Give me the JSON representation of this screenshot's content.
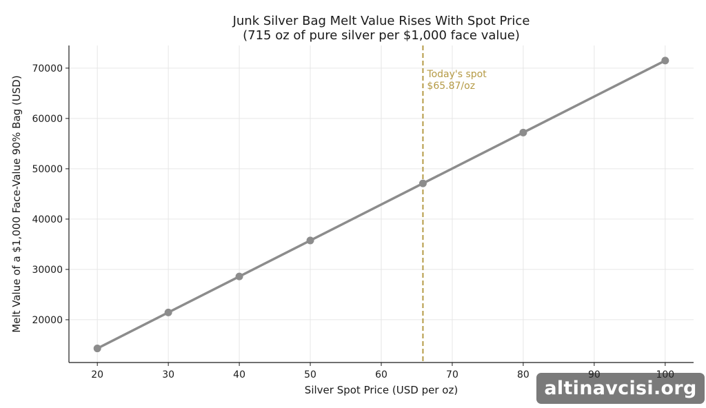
{
  "chart_data": {
    "type": "line",
    "title": "Junk Silver Bag Melt Value Rises With Spot Price",
    "subtitle": "(715 oz of pure silver per $1,000 face value)",
    "xlabel": "Silver Spot Price (USD per oz)",
    "ylabel": "Melt Value of a $1,000 Face-Value 90% Bag (USD)",
    "xlim": [
      16,
      104
    ],
    "ylim": [
      11500,
      74500
    ],
    "xticks": [
      20,
      30,
      40,
      50,
      60,
      70,
      80,
      90,
      100
    ],
    "yticks": [
      20000,
      30000,
      40000,
      50000,
      60000,
      70000
    ],
    "grid": true,
    "series": [
      {
        "x": [
          20,
          30,
          40,
          50,
          65.87,
          80,
          100
        ],
        "y": [
          14300,
          21450,
          28600,
          35750,
          47097,
          57200,
          71500
        ],
        "color": "#8c8c8c"
      }
    ],
    "annotations": [
      {
        "type": "vline",
        "x": 65.87,
        "color": "#b59a45",
        "text_line1": "Today's spot",
        "text_line2": "$65.87/oz"
      }
    ]
  },
  "watermark": {
    "text": "altinavcisi.org"
  }
}
